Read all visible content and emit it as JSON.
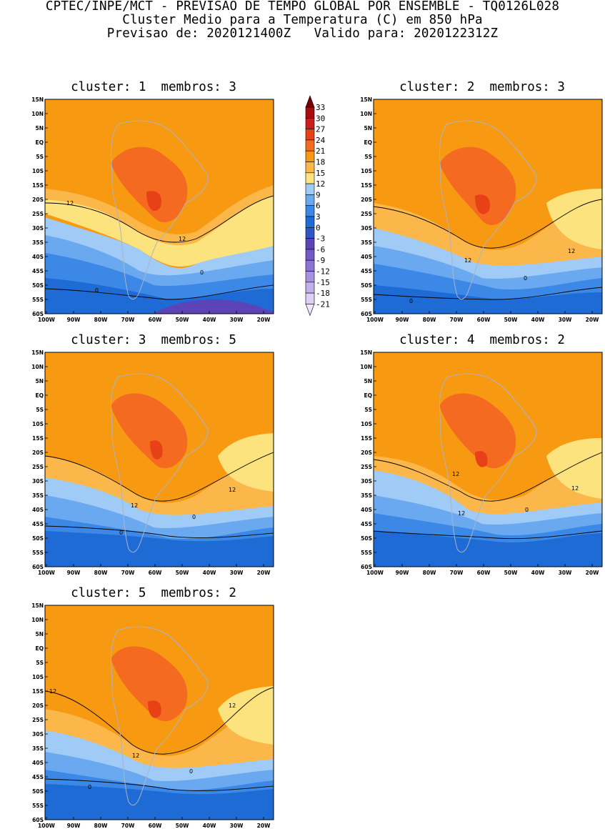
{
  "header": {
    "line1": "CPTEC/INPE/MCT - PREVISAO DE TEMPO GLOBAL POR ENSEMBLE - TQ0126L028",
    "line2": "Cluster Medio para a Temperatura (C) em 850 hPa",
    "line3": "Previsao de: 2020121400Z   Valido para: 2020122312Z"
  },
  "axes": {
    "lat_labels": [
      "15N",
      "10N",
      "5N",
      "EQ",
      "5S",
      "10S",
      "15S",
      "20S",
      "25S",
      "30S",
      "35S",
      "40S",
      "45S",
      "50S",
      "55S",
      "60S"
    ],
    "lon_labels": [
      "100W",
      "90W",
      "80W",
      "70W",
      "60W",
      "50W",
      "40W",
      "30W",
      "20W"
    ]
  },
  "legend": {
    "levels": [
      "33",
      "30",
      "27",
      "24",
      "21",
      "18",
      "15",
      "12",
      "9",
      "6",
      "3",
      "0",
      "-3",
      "-6",
      "-9",
      "-12",
      "-15",
      "-18",
      "-21"
    ],
    "colors": {
      "c_lt_m21": "#f0e8fa",
      "c_m21": "#ddd0f2",
      "c_m18": "#c2b0ea",
      "c_m15": "#a892e0",
      "c_m12": "#8c74d4",
      "c_m9": "#7358c8",
      "c_m6": "#5a44b8",
      "c_m3": "#2f55c6",
      "c_0": "#1e6bd6",
      "c_3": "#3b88e6",
      "c_6": "#6aa9f0",
      "c_9": "#9fcbf6",
      "c_12": "#fde37e",
      "c_15": "#fbb74a",
      "c_18": "#f79a12",
      "c_21": "#f46a20",
      "c_24": "#e84118",
      "c_27": "#cc1d1d",
      "c_30": "#a80e0e",
      "c_33": "#7a0000"
    }
  },
  "panels": [
    {
      "title": "cluster: 1  membros: 3",
      "contour_labels": [
        "12",
        "12",
        "0",
        "0"
      ]
    },
    {
      "title": "cluster: 2  membros: 3",
      "contour_labels": [
        "12",
        "12",
        "0",
        "0"
      ]
    },
    {
      "title": "cluster: 3  membros: 5",
      "contour_labels": [
        "12",
        "12",
        "0",
        "0"
      ]
    },
    {
      "title": "cluster: 4  membros: 2",
      "contour_labels": [
        "12",
        "12",
        "12",
        "0"
      ]
    },
    {
      "title": "cluster: 5  membros: 2",
      "contour_labels": [
        "12",
        "12",
        "12",
        "0",
        "0"
      ]
    }
  ]
}
